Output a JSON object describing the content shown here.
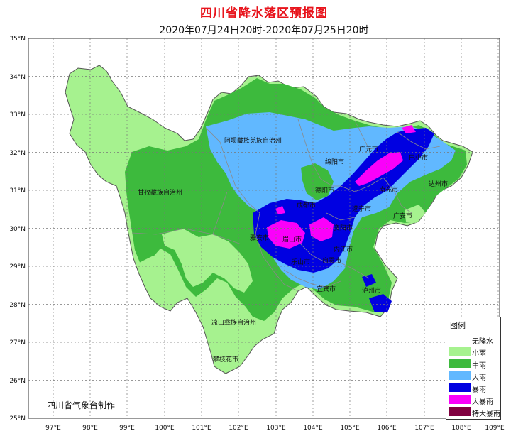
{
  "title": "四川省降水落区预报图",
  "subtitle": "2020年07月24日20时-2020年07月25日20时",
  "credit": "四川省气象台制作",
  "axes": {
    "y_labels": [
      "35°N",
      "34°N",
      "33°N",
      "32°N",
      "31°N",
      "30°N",
      "29°N",
      "28°N",
      "27°N",
      "26°N",
      "25°N"
    ],
    "x_labels": [
      "97°E",
      "98°E",
      "99°E",
      "100°E",
      "101°E",
      "102°E",
      "103°E",
      "104°E",
      "105°E",
      "106°E",
      "107°E",
      "108°E",
      "109°E"
    ]
  },
  "legend": {
    "title": "图例",
    "items": [
      {
        "label": "无降水",
        "color": "#ffffff"
      },
      {
        "label": "小雨",
        "color": "#a6f28f"
      },
      {
        "label": "中雨",
        "color": "#3dba3d"
      },
      {
        "label": "大雨",
        "color": "#61b8ff"
      },
      {
        "label": "暴雨",
        "color": "#0000e1"
      },
      {
        "label": "大暴雨",
        "color": "#fa00fa"
      },
      {
        "label": "特大暴雨",
        "color": "#800040"
      }
    ]
  },
  "places": [
    {
      "name": "阿坝藏族羌族自治州"
    },
    {
      "name": "甘孜藏族自治州"
    },
    {
      "name": "凉山彝族自治州"
    },
    {
      "name": "攀枝花市"
    },
    {
      "name": "绵阳市"
    },
    {
      "name": "广元市"
    },
    {
      "name": "巴中市"
    },
    {
      "name": "德阳市"
    },
    {
      "name": "成都市"
    },
    {
      "name": "南充市"
    },
    {
      "name": "达州市"
    },
    {
      "name": "遂宁市"
    },
    {
      "name": "广安市"
    },
    {
      "name": "雅安市"
    },
    {
      "name": "眉山市"
    },
    {
      "name": "资阳市"
    },
    {
      "name": "内江市"
    },
    {
      "name": "乐山市"
    },
    {
      "name": "自贡市"
    },
    {
      "name": "宜宾市"
    },
    {
      "name": "泸州市"
    }
  ]
}
